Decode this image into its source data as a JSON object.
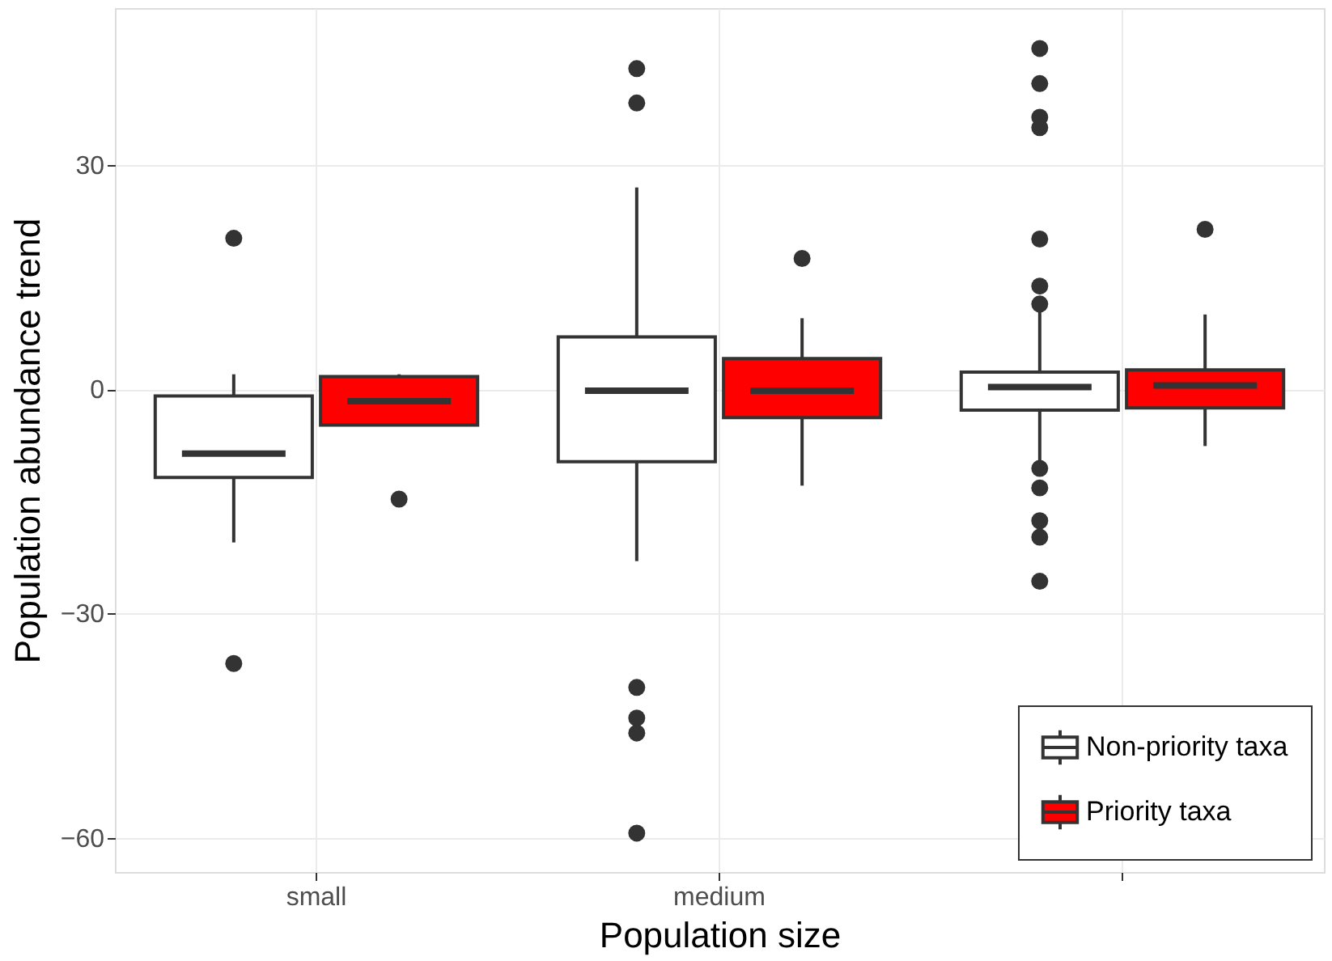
{
  "chart_data": {
    "type": "box",
    "xlabel": "Population size",
    "ylabel": "Population abundance trend",
    "categories": [
      "small",
      "medium",
      null
    ],
    "ylim": [
      -64.6,
      51
    ],
    "yticks": [
      -60,
      -30,
      0,
      30
    ],
    "grid": true,
    "legend": "bottom right",
    "series": [
      {
        "name": "Non-priority taxa",
        "color": "#ffffff",
        "boxes": [
          {
            "low": -20.5,
            "q1": -11.8,
            "median": -8.6,
            "q3": -0.9,
            "high": 2.0,
            "outliers": [
              20.2,
              -36.7
            ]
          },
          {
            "low": -23,
            "q1": -9.7,
            "median": -0.2,
            "q3": 7.0,
            "high": 27,
            "outliers": [
              42.9,
              38.3,
              -39.9,
              -44,
              -46,
              -59.4
            ]
          },
          {
            "low": -10.2,
            "q1": -2.8,
            "median": 0.3,
            "q3": 2.3,
            "high": 11.3,
            "outliers": [
              45.6,
              40.9,
              36.4,
              35,
              20.1,
              13.8,
              11.4,
              -10.6,
              -13.2,
              -17.6,
              -19.8,
              -25.7
            ]
          }
        ]
      },
      {
        "name": "Priority taxa",
        "color": "#ff0000",
        "boxes": [
          {
            "low": -4.8,
            "q1": -4.8,
            "median": -1.6,
            "q3": 1.7,
            "high": 2.0,
            "outliers": [
              -14.7
            ]
          },
          {
            "low": -12.9,
            "q1": -3.8,
            "median": -0.2,
            "q3": 4.1,
            "high": 9.5,
            "outliers": [
              17.5
            ]
          },
          {
            "low": -7.6,
            "q1": -2.5,
            "median": 0.5,
            "q3": 2.6,
            "high": 10,
            "outliers": [
              21.4
            ]
          }
        ]
      }
    ]
  }
}
